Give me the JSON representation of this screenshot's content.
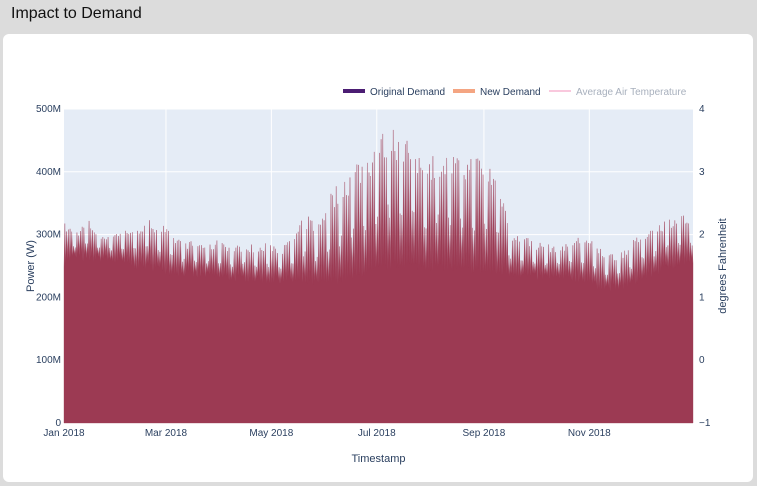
{
  "header": {
    "title": "Impact to Demand"
  },
  "chart_data": {
    "type": "area",
    "title": "",
    "xlabel": "Timestamp",
    "ylabel": "Power (W)",
    "y2label": "degrees Fahrenheit",
    "x_tick_labels": [
      "Jan 2018",
      "Mar 2018",
      "May 2018",
      "Jul 2018",
      "Sep 2018",
      "Nov 2018"
    ],
    "x_tick_dates": [
      "2018-01-01",
      "2018-03-01",
      "2018-05-01",
      "2018-07-01",
      "2018-09-01",
      "2018-11-01"
    ],
    "xlim": [
      "2018-01-01",
      "2018-12-31"
    ],
    "y_tick_labels": [
      "0",
      "100M",
      "200M",
      "300M",
      "400M",
      "500M"
    ],
    "y_ticks": [
      0,
      100000000,
      200000000,
      300000000,
      400000000,
      500000000
    ],
    "ylim": [
      0,
      500000000
    ],
    "y2_tick_labels": [
      "−1",
      "0",
      "1",
      "2",
      "3",
      "4"
    ],
    "y2_ticks": [
      -1,
      0,
      1,
      2,
      3,
      4
    ],
    "y2lim": [
      -1,
      4
    ],
    "grid": true,
    "legend_position": "top-right",
    "series": [
      {
        "name": "Original Demand",
        "color": "#4b1d73"
      },
      {
        "name": "New Demand",
        "color": "#f4a582"
      },
      {
        "name": "Average Air Temperature",
        "color": "#f7b6d2"
      }
    ],
    "fill_color": "#9c3a53",
    "weekly": {
      "note_unit": "W",
      "dates": [
        "2018-01-01",
        "2018-01-08",
        "2018-01-15",
        "2018-01-22",
        "2018-01-29",
        "2018-02-05",
        "2018-02-12",
        "2018-02-19",
        "2018-02-26",
        "2018-03-05",
        "2018-03-12",
        "2018-03-19",
        "2018-03-26",
        "2018-04-02",
        "2018-04-09",
        "2018-04-16",
        "2018-04-23",
        "2018-04-30",
        "2018-05-07",
        "2018-05-14",
        "2018-05-21",
        "2018-05-28",
        "2018-06-04",
        "2018-06-11",
        "2018-06-18",
        "2018-06-25",
        "2018-07-02",
        "2018-07-09",
        "2018-07-16",
        "2018-07-23",
        "2018-07-30",
        "2018-08-06",
        "2018-08-13",
        "2018-08-20",
        "2018-08-27",
        "2018-09-03",
        "2018-09-10",
        "2018-09-17",
        "2018-09-24",
        "2018-10-01",
        "2018-10-08",
        "2018-10-15",
        "2018-10-22",
        "2018-10-29",
        "2018-11-05",
        "2018-11-12",
        "2018-11-19",
        "2018-11-26",
        "2018-12-03",
        "2018-12-10",
        "2018-12-17",
        "2018-12-24",
        "2018-12-31"
      ],
      "peak": [
        320000000,
        305000000,
        325000000,
        300000000,
        305000000,
        310000000,
        315000000,
        325000000,
        320000000,
        300000000,
        290000000,
        290000000,
        285000000,
        295000000,
        280000000,
        290000000,
        280000000,
        290000000,
        280000000,
        300000000,
        335000000,
        320000000,
        370000000,
        390000000,
        420000000,
        430000000,
        460000000,
        475000000,
        470000000,
        440000000,
        425000000,
        440000000,
        430000000,
        425000000,
        430000000,
        420000000,
        395000000,
        300000000,
        300000000,
        290000000,
        285000000,
        285000000,
        295000000,
        300000000,
        285000000,
        270000000,
        275000000,
        290000000,
        310000000,
        320000000,
        330000000,
        335000000,
        325000000
      ],
      "base": [
        255000000,
        265000000,
        260000000,
        262000000,
        258000000,
        255000000,
        250000000,
        248000000,
        245000000,
        240000000,
        238000000,
        235000000,
        235000000,
        232000000,
        230000000,
        230000000,
        228000000,
        226000000,
        228000000,
        226000000,
        225000000,
        222000000,
        225000000,
        228000000,
        232000000,
        238000000,
        245000000,
        250000000,
        252000000,
        250000000,
        248000000,
        248000000,
        246000000,
        244000000,
        243000000,
        240000000,
        238000000,
        238000000,
        235000000,
        232000000,
        232000000,
        230000000,
        230000000,
        228000000,
        218000000,
        215000000,
        215000000,
        222000000,
        232000000,
        240000000,
        248000000,
        255000000,
        256000000
      ]
    }
  }
}
